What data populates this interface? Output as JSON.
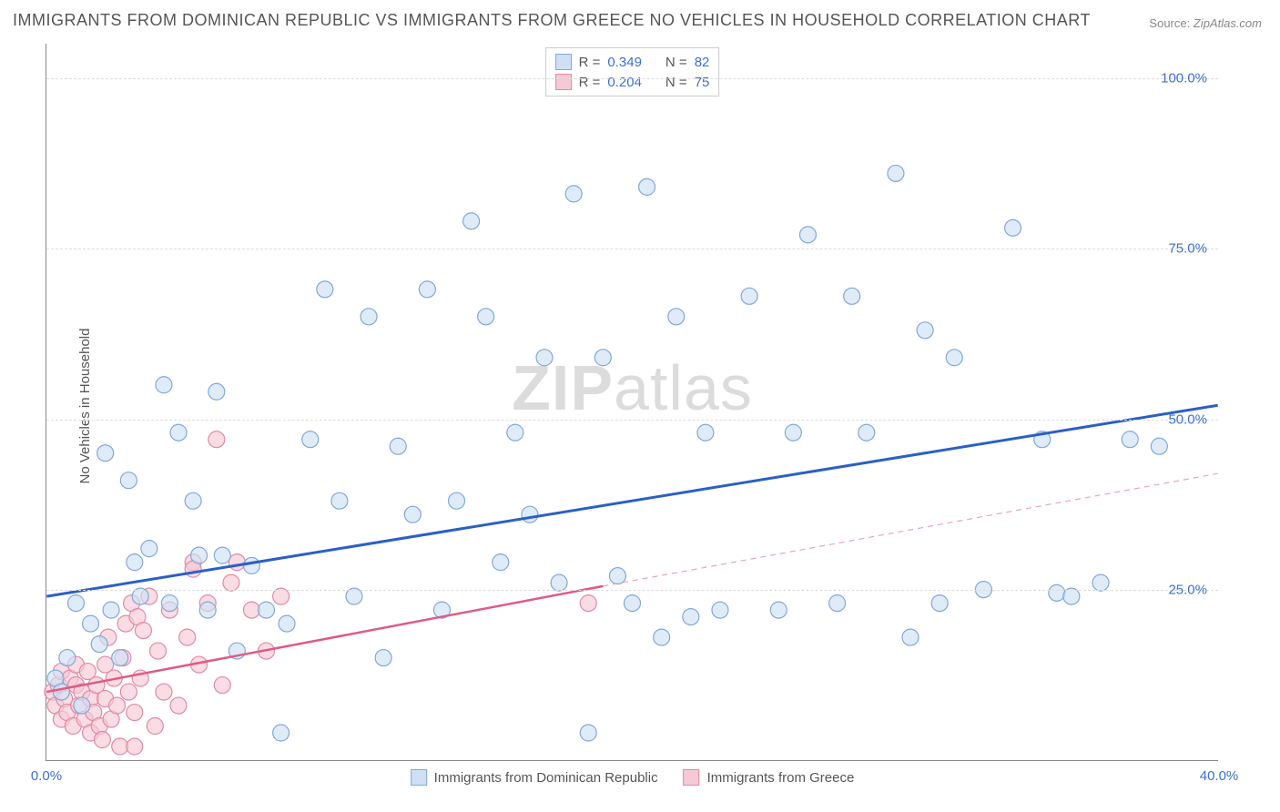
{
  "title": "IMMIGRANTS FROM DOMINICAN REPUBLIC VS IMMIGRANTS FROM GREECE NO VEHICLES IN HOUSEHOLD CORRELATION CHART",
  "source_label": "Source:",
  "source_value": "ZipAtlas.com",
  "ylabel": "No Vehicles in Household",
  "watermark_zip": "ZIP",
  "watermark_atlas": "atlas",
  "chart": {
    "type": "scatter",
    "xlim": [
      0,
      40
    ],
    "ylim": [
      0,
      105
    ],
    "xticks": [
      {
        "v": 0,
        "label": "0.0%"
      },
      {
        "v": 40,
        "label": "40.0%"
      }
    ],
    "yticks": [
      {
        "v": 25,
        "label": "25.0%"
      },
      {
        "v": 50,
        "label": "50.0%"
      },
      {
        "v": 75,
        "label": "75.0%"
      },
      {
        "v": 100,
        "label": "100.0%"
      }
    ],
    "xtick_color": "#3b6fd6",
    "ytick_color": "#3b6fd6",
    "grid_color": "#dddddd",
    "background_color": "#ffffff",
    "marker_radius": 9,
    "marker_stroke_width": 1.2,
    "series": [
      {
        "name": "Immigrants from Dominican Republic",
        "fill": "#cfe0f5",
        "stroke": "#7fa8d9",
        "fill_opacity": 0.65,
        "R": "0.349",
        "N": "82",
        "trend": {
          "x1": 0,
          "y1": 24,
          "x2": 40,
          "y2": 52,
          "color": "#2b5fc6",
          "width": 3,
          "dash": "none",
          "extrap_dash": "none"
        },
        "points": [
          [
            0.3,
            12
          ],
          [
            0.5,
            10
          ],
          [
            0.7,
            15
          ],
          [
            1,
            23
          ],
          [
            1.2,
            8
          ],
          [
            1.5,
            20
          ],
          [
            1.8,
            17
          ],
          [
            2,
            45
          ],
          [
            2.2,
            22
          ],
          [
            2.5,
            15
          ],
          [
            2.8,
            41
          ],
          [
            3,
            29
          ],
          [
            3.2,
            24
          ],
          [
            3.5,
            31
          ],
          [
            4,
            55
          ],
          [
            4.2,
            23
          ],
          [
            4.5,
            48
          ],
          [
            5,
            38
          ],
          [
            5.2,
            30
          ],
          [
            5.5,
            22
          ],
          [
            5.8,
            54
          ],
          [
            6,
            30
          ],
          [
            6.5,
            16
          ],
          [
            7,
            28.5
          ],
          [
            7.5,
            22
          ],
          [
            8,
            4
          ],
          [
            8.2,
            20
          ],
          [
            9,
            47
          ],
          [
            9.5,
            69
          ],
          [
            10,
            38
          ],
          [
            10.5,
            24
          ],
          [
            11,
            65
          ],
          [
            11.5,
            15
          ],
          [
            12,
            46
          ],
          [
            12.5,
            36
          ],
          [
            13,
            69
          ],
          [
            13.5,
            22
          ],
          [
            14,
            38
          ],
          [
            14.5,
            79
          ],
          [
            15,
            65
          ],
          [
            15.5,
            29
          ],
          [
            16,
            48
          ],
          [
            16.5,
            36
          ],
          [
            17,
            59
          ],
          [
            17.5,
            26
          ],
          [
            18,
            83
          ],
          [
            18.5,
            4
          ],
          [
            19,
            59
          ],
          [
            19.5,
            27
          ],
          [
            20,
            23
          ],
          [
            20.5,
            84
          ],
          [
            21,
            18
          ],
          [
            21.5,
            65
          ],
          [
            22,
            21
          ],
          [
            22.5,
            48
          ],
          [
            23,
            22
          ],
          [
            24,
            68
          ],
          [
            25,
            22
          ],
          [
            25.5,
            48
          ],
          [
            26,
            77
          ],
          [
            27,
            23
          ],
          [
            27.5,
            68
          ],
          [
            28,
            48
          ],
          [
            29,
            86
          ],
          [
            29.5,
            18
          ],
          [
            30,
            63
          ],
          [
            30.5,
            23
          ],
          [
            31,
            59
          ],
          [
            32,
            25
          ],
          [
            33,
            78
          ],
          [
            34,
            47
          ],
          [
            34.5,
            24.5
          ],
          [
            35,
            24
          ],
          [
            36,
            26
          ],
          [
            37,
            47
          ],
          [
            38,
            46
          ]
        ]
      },
      {
        "name": "Immigrants from Greece",
        "fill": "#f6c9d6",
        "stroke": "#e08aa5",
        "fill_opacity": 0.65,
        "R": "0.204",
        "N": "75",
        "trend": {
          "x1": 0,
          "y1": 10,
          "x2": 19,
          "y2": 25.5,
          "color": "#e05a84",
          "width": 2.5,
          "dash": "none",
          "extrap_x2": 40,
          "extrap_y2": 42,
          "extrap_dash": "6,5",
          "extrap_width": 1.2,
          "extrap_color": "#e8a4b8"
        },
        "points": [
          [
            0.2,
            10
          ],
          [
            0.3,
            8
          ],
          [
            0.4,
            11
          ],
          [
            0.5,
            6
          ],
          [
            0.5,
            13
          ],
          [
            0.6,
            9
          ],
          [
            0.7,
            7
          ],
          [
            0.8,
            12
          ],
          [
            0.9,
            5
          ],
          [
            1,
            11
          ],
          [
            1,
            14
          ],
          [
            1.1,
            8
          ],
          [
            1.2,
            10
          ],
          [
            1.3,
            6
          ],
          [
            1.4,
            13
          ],
          [
            1.5,
            9
          ],
          [
            1.5,
            4
          ],
          [
            1.6,
            7
          ],
          [
            1.7,
            11
          ],
          [
            1.8,
            5
          ],
          [
            1.9,
            3
          ],
          [
            2,
            14
          ],
          [
            2,
            9
          ],
          [
            2.1,
            18
          ],
          [
            2.2,
            6
          ],
          [
            2.3,
            12
          ],
          [
            2.4,
            8
          ],
          [
            2.5,
            2
          ],
          [
            2.6,
            15
          ],
          [
            2.7,
            20
          ],
          [
            2.8,
            10
          ],
          [
            2.9,
            23
          ],
          [
            3,
            7
          ],
          [
            3,
            2
          ],
          [
            3.1,
            21
          ],
          [
            3.2,
            12
          ],
          [
            3.3,
            19
          ],
          [
            3.5,
            24
          ],
          [
            3.7,
            5
          ],
          [
            3.8,
            16
          ],
          [
            4,
            10
          ],
          [
            4.2,
            22
          ],
          [
            4.5,
            8
          ],
          [
            4.8,
            18
          ],
          [
            5,
            29
          ],
          [
            5,
            28
          ],
          [
            5.2,
            14
          ],
          [
            5.5,
            23
          ],
          [
            5.8,
            47
          ],
          [
            6,
            11
          ],
          [
            6.3,
            26
          ],
          [
            6.5,
            29
          ],
          [
            7,
            22
          ],
          [
            7.5,
            16
          ],
          [
            8,
            24
          ],
          [
            18.5,
            23
          ]
        ]
      }
    ]
  },
  "legend_top": {
    "R_label": "R =",
    "N_label": "N ="
  },
  "legend_bottom": [
    "Immigrants from Dominican Republic",
    "Immigrants from Greece"
  ]
}
